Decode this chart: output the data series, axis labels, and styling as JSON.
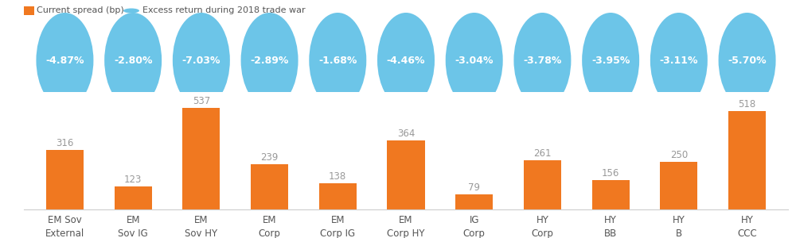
{
  "categories": [
    "EM Sov\nExternal",
    "EM\nSov IG",
    "EM\nSov HY",
    "EM\nCorp",
    "EM\nCorp IG",
    "EM\nCorp HY",
    "IG\nCorp",
    "HY\nCorp",
    "HY\nBB",
    "HY\nB",
    "HY\nCCC"
  ],
  "bar_values": [
    316,
    123,
    537,
    239,
    138,
    364,
    79,
    261,
    156,
    250,
    518
  ],
  "bubble_values": [
    "-4.87%",
    "-2.80%",
    "-7.03%",
    "-2.89%",
    "-1.68%",
    "-4.46%",
    "-3.04%",
    "-3.78%",
    "-3.95%",
    "-3.11%",
    "-5.70%"
  ],
  "bar_color": "#F07820",
  "bubble_color": "#6CC5E8",
  "bar_label_color": "#999999",
  "bubble_text_color": "#FFFFFF",
  "legend_bar_label": "Current spread (bp)",
  "legend_bubble_label": "Excess return during 2018 trade war",
  "ylim": [
    0,
    620
  ],
  "background_color": "#FFFFFF",
  "axis_line_color": "#CCCCCC",
  "tick_label_fontsize": 8.5,
  "bar_label_fontsize": 8.5,
  "bubble_fontsize": 9.0,
  "legend_fontsize": 8.0
}
